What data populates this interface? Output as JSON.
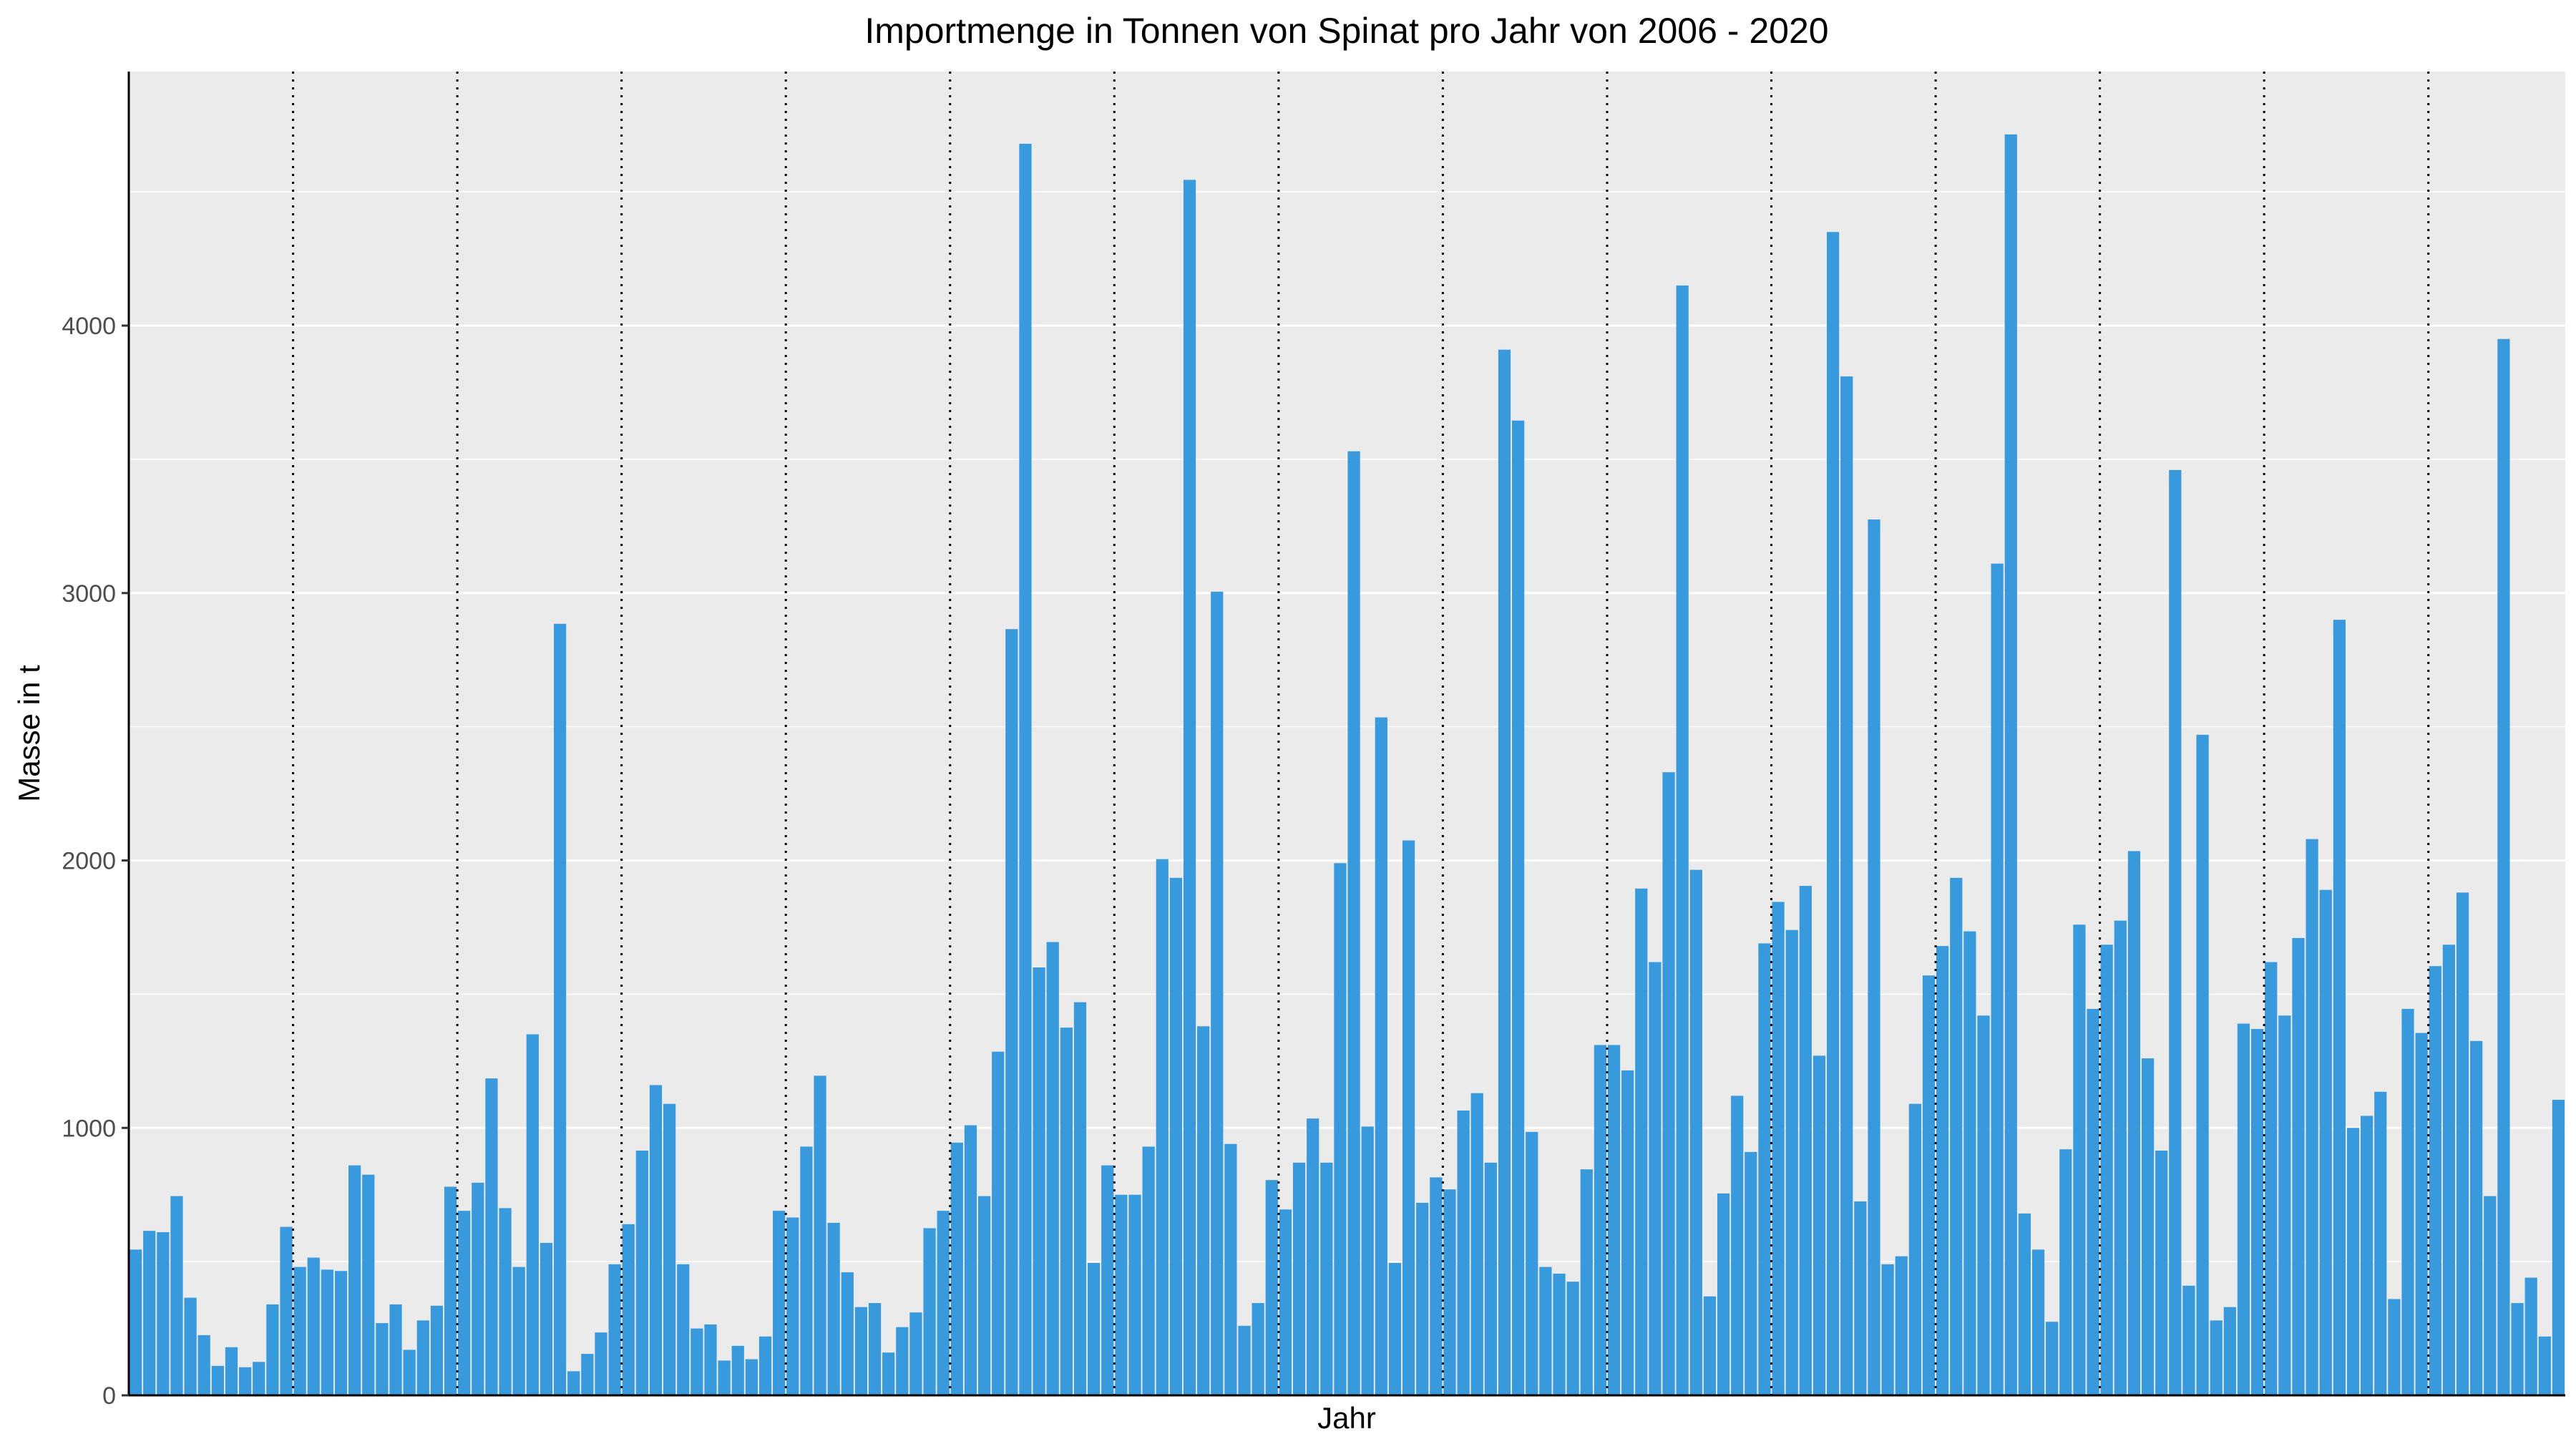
{
  "chart_data": {
    "type": "bar",
    "title": "Importmenge in Tonnen von Spinat pro Jahr von 2006 - 2020",
    "xlabel": "Jahr",
    "ylabel": "Masse in t",
    "ylim": [
      0,
      4950
    ],
    "yticks": [
      0,
      1000,
      2000,
      3000,
      4000
    ],
    "grid": true,
    "legend": "none",
    "colors": {
      "bar": "#3899dc",
      "panel": "#ebebeb",
      "grid": "#ffffff",
      "year_separator": "#000000",
      "axis": "#000000"
    },
    "year_separators": "dotted vertical line after every 12 monthly bars",
    "values": [
      545,
      615,
      610,
      745,
      365,
      225,
      110,
      180,
      105,
      125,
      340,
      630,
      480,
      515,
      470,
      465,
      860,
      825,
      270,
      340,
      170,
      280,
      335,
      780,
      690,
      795,
      1185,
      700,
      480,
      1350,
      570,
      2885,
      90,
      155,
      235,
      490,
      640,
      915,
      1160,
      1090,
      490,
      250,
      265,
      130,
      185,
      135,
      220,
      690,
      665,
      930,
      1195,
      645,
      460,
      330,
      345,
      160,
      255,
      310,
      625,
      690,
      945,
      1010,
      745,
      1285,
      2865,
      4680,
      1600,
      1695,
      1375,
      1470,
      495,
      860,
      750,
      750,
      930,
      2005,
      1935,
      4545,
      1380,
      3005,
      940,
      260,
      345,
      805,
      695,
      870,
      1035,
      870,
      1990,
      3530,
      1005,
      2535,
      495,
      2075,
      720,
      815,
      770,
      1065,
      1130,
      870,
      3910,
      3645,
      985,
      480,
      455,
      425,
      845,
      1310,
      1310,
      1215,
      1895,
      1620,
      2330,
      4150,
      1965,
      370,
      755,
      1120,
      910,
      1690,
      1845,
      1740,
      1905,
      1270,
      4350,
      3810,
      725,
      3275,
      490,
      520,
      1090,
      1570,
      1680,
      1935,
      1735,
      1420,
      3110,
      4715,
      680,
      545,
      275,
      920,
      1760,
      1445,
      1685,
      1775,
      2035,
      1260,
      915,
      3460,
      410,
      2470,
      280,
      330,
      1390,
      1370,
      1620,
      1420,
      1710,
      2080,
      1890,
      2900,
      1000,
      1045,
      1135,
      360,
      1445,
      1355,
      1605,
      1685,
      1880,
      1325,
      745,
      3950,
      345,
      440,
      220,
      1105
    ]
  }
}
